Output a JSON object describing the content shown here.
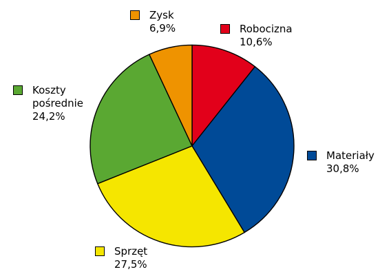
{
  "chart_data": {
    "type": "pie",
    "title": "",
    "slices": [
      {
        "label": "Robocizna",
        "value": 10.6,
        "value_label": "10,6%",
        "color": "#e2001a"
      },
      {
        "label": "Materiały",
        "value": 30.8,
        "value_label": "30,8%",
        "color": "#004a97"
      },
      {
        "label": "Sprzęt",
        "value": 27.5,
        "value_label": "27,5%",
        "color": "#f5e600"
      },
      {
        "label": "Koszty\npośrednie",
        "value": 24.2,
        "value_label": "24,2%",
        "color": "#5aa832"
      },
      {
        "label": "Zysk",
        "value": 6.9,
        "value_label": "6,9%",
        "color": "#ef9300"
      }
    ],
    "start": "12 o'clock",
    "direction": "clockwise",
    "slice_border": "#000000"
  }
}
